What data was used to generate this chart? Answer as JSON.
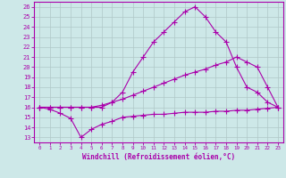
{
  "xlabel": "Windchill (Refroidissement éolien,°C)",
  "xlim": [
    -0.5,
    23.5
  ],
  "ylim": [
    12.5,
    26.5
  ],
  "xticks": [
    0,
    1,
    2,
    3,
    4,
    5,
    6,
    7,
    8,
    9,
    10,
    11,
    12,
    13,
    14,
    15,
    16,
    17,
    18,
    19,
    20,
    21,
    22,
    23
  ],
  "yticks": [
    13,
    14,
    15,
    16,
    17,
    18,
    19,
    20,
    21,
    22,
    23,
    24,
    25,
    26
  ],
  "bg_color": "#cde8e8",
  "line_color": "#aa00aa",
  "grid_color": "#b0c8c8",
  "line1_x": [
    0,
    1,
    2,
    3,
    4,
    5,
    6,
    7,
    8,
    9,
    10,
    11,
    12,
    13,
    14,
    15,
    16,
    17,
    18,
    19,
    20,
    21,
    22,
    23
  ],
  "line1_y": [
    16.0,
    15.8,
    15.4,
    14.9,
    13.0,
    13.8,
    14.3,
    14.6,
    15.0,
    15.1,
    15.2,
    15.3,
    15.3,
    15.4,
    15.5,
    15.5,
    15.5,
    15.6,
    15.6,
    15.7,
    15.7,
    15.8,
    15.9,
    16.0
  ],
  "line2_x": [
    0,
    1,
    2,
    3,
    4,
    5,
    6,
    7,
    8,
    9,
    10,
    11,
    12,
    13,
    14,
    15,
    16,
    17,
    18,
    19,
    20,
    21,
    22,
    23
  ],
  "line2_y": [
    16.0,
    16.0,
    16.0,
    16.0,
    16.0,
    16.0,
    16.0,
    16.5,
    17.5,
    19.5,
    21.0,
    22.5,
    23.5,
    24.5,
    25.5,
    26.0,
    25.0,
    23.5,
    22.5,
    20.0,
    18.0,
    17.5,
    16.5,
    16.0
  ],
  "line3_x": [
    0,
    1,
    2,
    3,
    4,
    5,
    6,
    7,
    8,
    9,
    10,
    11,
    12,
    13,
    14,
    15,
    16,
    17,
    18,
    19,
    20,
    21,
    22,
    23
  ],
  "line3_y": [
    16.0,
    16.0,
    16.0,
    16.0,
    16.0,
    16.0,
    16.2,
    16.5,
    16.8,
    17.2,
    17.6,
    18.0,
    18.4,
    18.8,
    19.2,
    19.5,
    19.8,
    20.2,
    20.5,
    21.0,
    20.5,
    20.0,
    18.0,
    16.0
  ]
}
